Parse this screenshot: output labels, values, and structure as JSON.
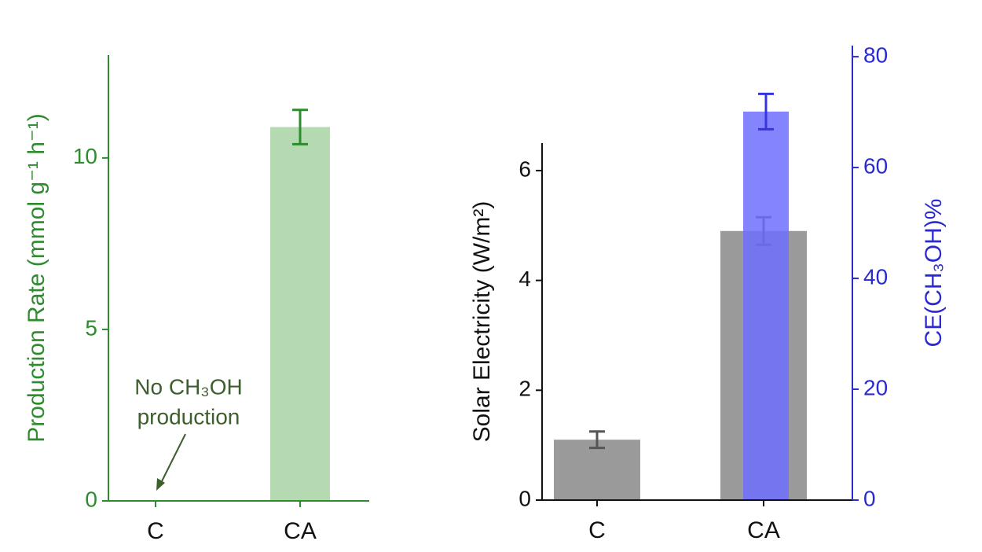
{
  "chart_data": [
    {
      "type": "bar",
      "ylabel": "Production Rate (mmol g⁻¹ h⁻¹)",
      "annotation": [
        "No CH₃OH",
        "production"
      ],
      "categories": [
        "C",
        "CA"
      ],
      "series": [
        {
          "color": "#b5d9b0",
          "values": [
            0,
            10.9
          ],
          "errors": [
            0,
            0.5
          ]
        }
      ],
      "error_color": "#2e8b2e",
      "axis_color": "#2e8b2e",
      "ylim": [
        0,
        13
      ],
      "yticks": [
        0,
        5,
        10
      ]
    },
    {
      "type": "bar",
      "ylabel": "Solar Electricity (W/m²)",
      "y2label": "CE(CH₃OH)%",
      "categories": [
        "C",
        "CA"
      ],
      "series": [
        {
          "color": "#9a9a9a",
          "values": [
            1.1,
            4.9
          ],
          "errors": [
            0.15,
            0.25
          ],
          "error_color": "#555555"
        },
        {
          "color": "#6e6eff",
          "values": [
            null,
            70.1
          ],
          "errors": [
            null,
            3.2
          ],
          "axis": "y2",
          "error_color": "#3535e0"
        }
      ],
      "axis_color": "#111111",
      "y2_color": "#2a2ad0",
      "ylim": [
        0,
        6.5
      ],
      "yticks": [
        0,
        2,
        4,
        6
      ],
      "y2lim": [
        0,
        82
      ],
      "y2ticks": [
        0,
        20,
        40,
        60,
        80
      ]
    }
  ]
}
